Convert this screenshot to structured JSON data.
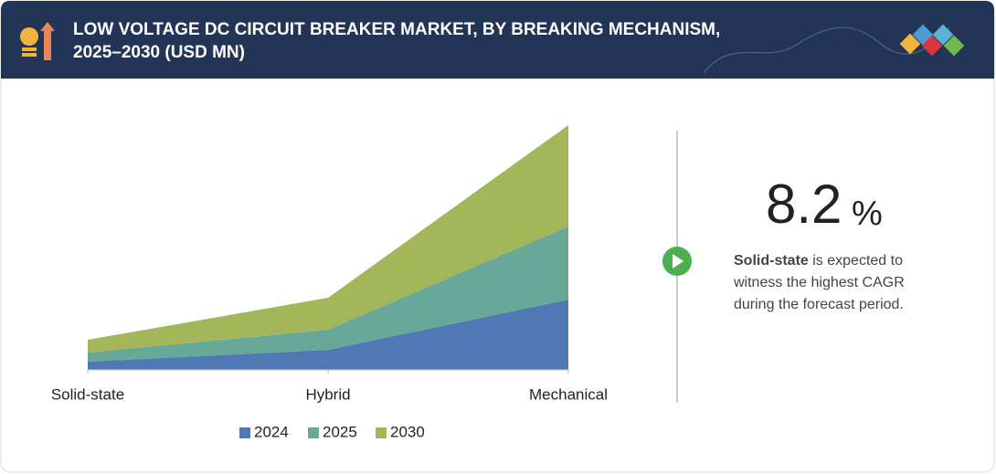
{
  "header": {
    "title_line1": "LOW VOLTAGE DC CIRCUIT BREAKER MARKET, BY BREAKING MECHANISM,",
    "title_line2": "2025–2030 (USD MN)"
  },
  "chart_data": {
    "type": "stacked_area",
    "categories": [
      "Solid-state",
      "Hybrid",
      "Mechanical"
    ],
    "series": [
      {
        "name": "2024",
        "color": "#4f78b5",
        "values": [
          9,
          22,
          77
        ]
      },
      {
        "name": "2025",
        "color": "#68a898",
        "values": [
          10,
          22,
          80
        ]
      },
      {
        "name": "2030",
        "color": "#a3b65a",
        "values": [
          14,
          35,
          111
        ]
      }
    ],
    "ylim": [
      0,
      280
    ]
  },
  "highlight": {
    "value": "8.2",
    "unit": "%",
    "lead": "Solid-state",
    "text": " is expected to witness the highest CAGR during the forecast period."
  }
}
